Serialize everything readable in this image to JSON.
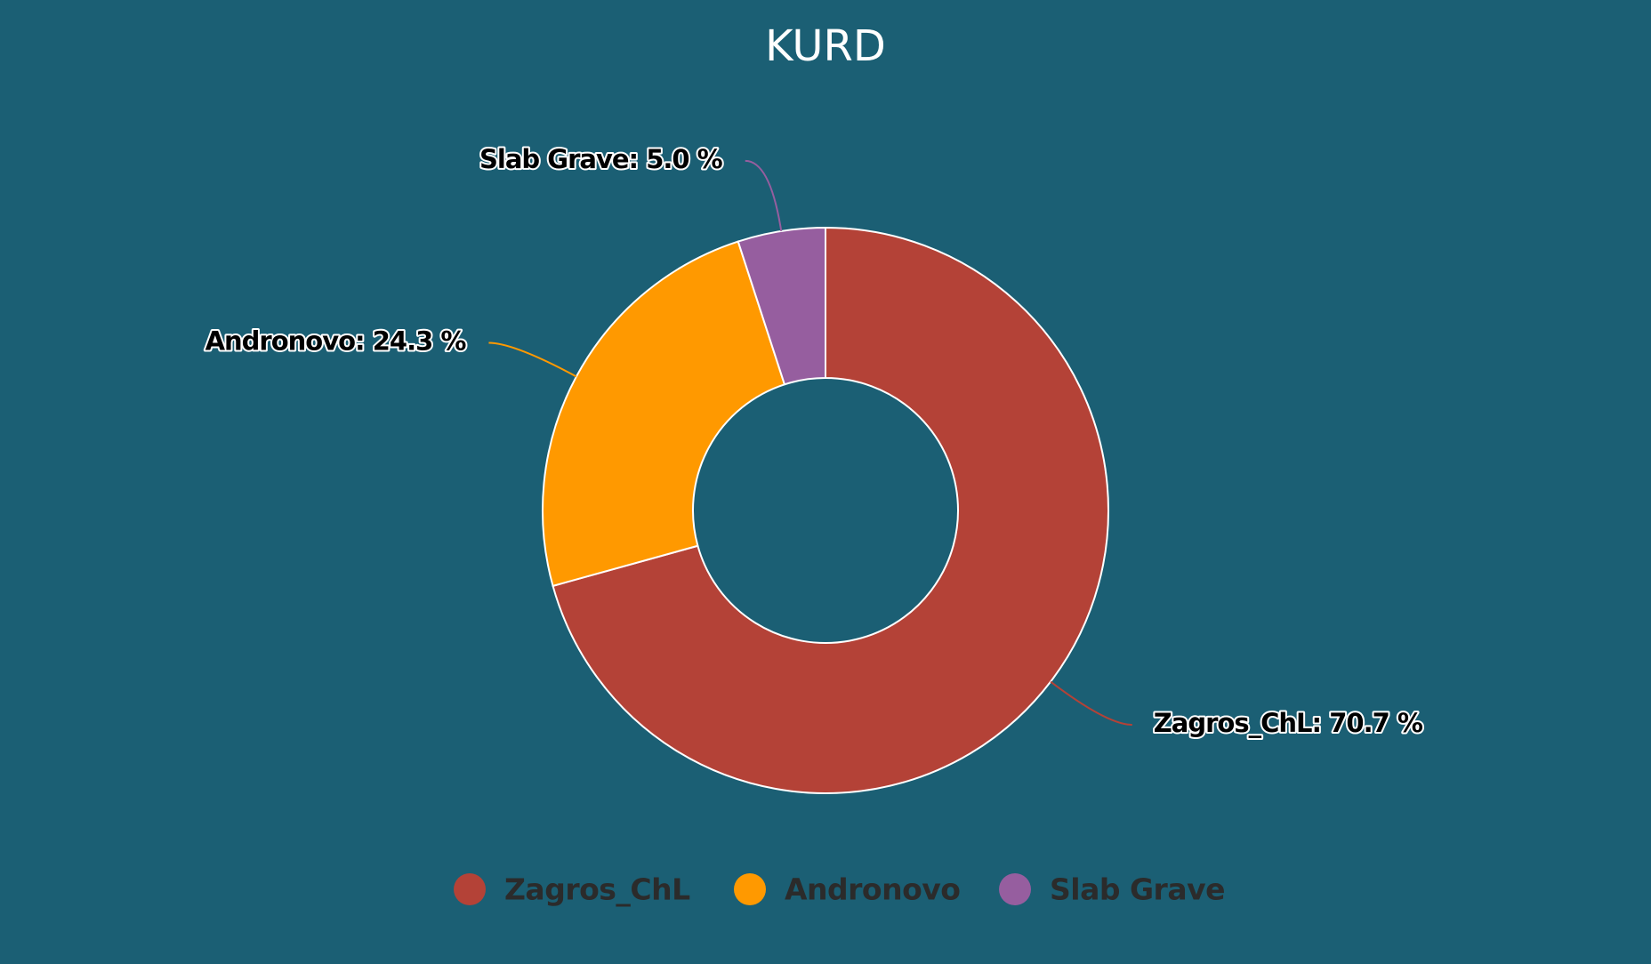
{
  "chart_data": {
    "type": "donut",
    "title": "KURD",
    "categories": [
      "Zagros_ChL",
      "Andronovo",
      "Slab Grave"
    ],
    "values": [
      70.7,
      24.3,
      5.0
    ],
    "value_labels": [
      "Zagros_ChL: 70.7 %",
      "Andronovo: 24.3 %",
      "Slab Grave: 5.0 %"
    ],
    "colors": [
      "#b44237",
      "#ff9900",
      "#965e9f"
    ],
    "legend": "bottom"
  }
}
